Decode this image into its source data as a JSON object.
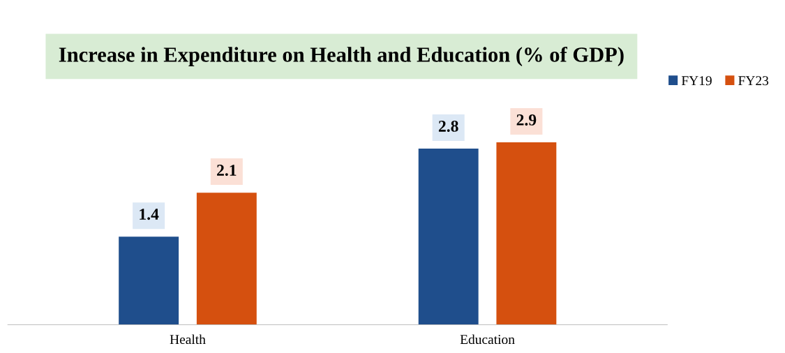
{
  "chart_data": {
    "type": "bar",
    "title": "Increase in Expenditure on Health and Education (% of GDP)",
    "categories": [
      "Health",
      "Education"
    ],
    "series": [
      {
        "name": "FY19",
        "color": "#1f4e8c",
        "values": [
          1.4,
          2.8
        ]
      },
      {
        "name": "FY23",
        "color": "#d5500f",
        "values": [
          2.1,
          2.9
        ]
      }
    ],
    "data_labels": true,
    "legend": "top right",
    "grid": false,
    "tick_labels": "x"
  }
}
